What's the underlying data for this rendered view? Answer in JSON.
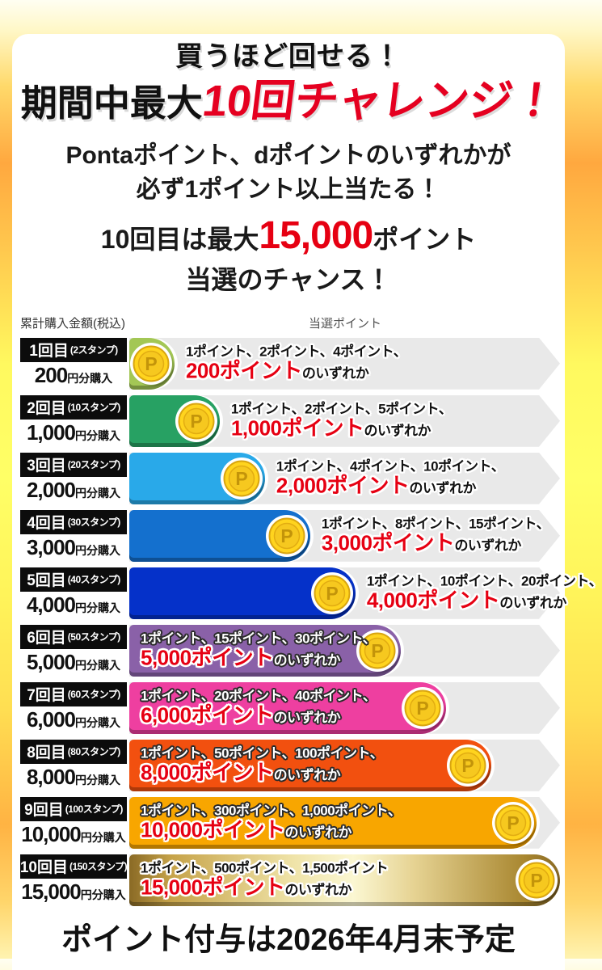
{
  "header": {
    "title_top": "買うほど回せる！",
    "title_main_black": "期間中最大",
    "title_main_red": "10回チャレンジ！",
    "lead_line1": "Pontaポイント、dポイントのいずれかが",
    "lead_line2": "必ず1ポイント以上当たる！",
    "big_prefix": "10回目は最大",
    "big_value": "15,000",
    "big_suffix": "ポイント",
    "big_line2": "当選のチャンス！"
  },
  "table": {
    "col_left": "累計購入金額(税込)",
    "col_right": "当選ポイント",
    "rows": [
      {
        "round": "1回目",
        "stamps": "(2スタンプ)",
        "amount": "200",
        "amount_suffix": "円分購入",
        "options": "1ポイント、2ポイント、4ポイント、",
        "prize": "200ポイント",
        "prize_suffix": "のいずれか",
        "color": "#a3c755",
        "fill_pct": 10.5,
        "text_mode": "outside"
      },
      {
        "round": "2回目",
        "stamps": "(10スタンプ)",
        "amount": "1,000",
        "amount_suffix": "円分購入",
        "options": "1ポイント、2ポイント、5ポイント、",
        "prize": "1,000ポイント",
        "prize_suffix": "のいずれか",
        "color": "#27a163",
        "fill_pct": 21,
        "text_mode": "outside"
      },
      {
        "round": "3回目",
        "stamps": "(20スタンプ)",
        "amount": "2,000",
        "amount_suffix": "円分購入",
        "options": "1ポイント、4ポイント、10ポイント、",
        "prize": "2,000ポイント",
        "prize_suffix": "のいずれか",
        "color": "#29a9e9",
        "fill_pct": 31.5,
        "text_mode": "outside"
      },
      {
        "round": "4回目",
        "stamps": "(30スタンプ)",
        "amount": "3,000",
        "amount_suffix": "円分購入",
        "options": "1ポイント、8ポイント、15ポイント、",
        "prize": "3,000ポイント",
        "prize_suffix": "のいずれか",
        "color": "#1470ce",
        "fill_pct": 42,
        "text_mode": "outside"
      },
      {
        "round": "5回目",
        "stamps": "(40スタンプ)",
        "amount": "4,000",
        "amount_suffix": "円分購入",
        "options": "1ポイント、10ポイント、20ポイント、",
        "prize": "4,000ポイント",
        "prize_suffix": "のいずれか",
        "color": "#0531c9",
        "fill_pct": 52.5,
        "text_mode": "outside"
      },
      {
        "round": "6回目",
        "stamps": "(50スタンプ)",
        "amount": "5,000",
        "amount_suffix": "円分購入",
        "options": "1ポイント、15ポイント、30ポイント、",
        "prize": "5,000ポイント",
        "prize_suffix": "のいずれか",
        "color": "#8a61a8",
        "fill_pct": 63,
        "text_mode": "inside"
      },
      {
        "round": "7回目",
        "stamps": "(60スタンプ)",
        "amount": "6,000",
        "amount_suffix": "円分購入",
        "options": "1ポイント、20ポイント、40ポイント、",
        "prize": "6,000ポイント",
        "prize_suffix": "のいずれか",
        "color": "#ee3fa0",
        "fill_pct": 73.5,
        "text_mode": "inside"
      },
      {
        "round": "8回目",
        "stamps": "(80スタンプ)",
        "amount": "8,000",
        "amount_suffix": "円分購入",
        "options": "1ポイント、50ポイント、100ポイント、",
        "prize": "8,000ポイント",
        "prize_suffix": "のいずれか",
        "color": "#f2500f",
        "fill_pct": 84,
        "text_mode": "inside"
      },
      {
        "round": "9回目",
        "stamps": "(100スタンプ)",
        "amount": "10,000",
        "amount_suffix": "円分購入",
        "options": "1ポイント、300ポイント、1,000ポイント、",
        "prize": "10,000ポイント",
        "prize_suffix": "のいずれか",
        "color": "#f8a600",
        "fill_pct": 94.5,
        "text_mode": "inside"
      },
      {
        "round": "10回目",
        "stamps": "(150スタンプ)",
        "amount": "15,000",
        "amount_suffix": "円分購入",
        "options": "1ポイント、500ポイント、1,500ポイント",
        "prize": "15,000ポイント",
        "prize_suffix": "のいずれか",
        "color": "#c7a44a",
        "fill_css": "linear-gradient(90deg,#8a6a25 0%,#c7a44a 10%,#efe3a8 38%,#fbf7d2 52%,#e6d393 66%,#a8862f 92%,#8a6a25 100%)",
        "fill_pct": 100,
        "text_mode": "inside-dark"
      }
    ]
  },
  "footer": {
    "note": "ポイント付与は2026年4月末予定"
  },
  "colors": {
    "accent_red": "#e60012",
    "track_gray": "#e9e9e9",
    "frame_yellow": "#ffee55"
  },
  "icons": {
    "coin": "P"
  }
}
